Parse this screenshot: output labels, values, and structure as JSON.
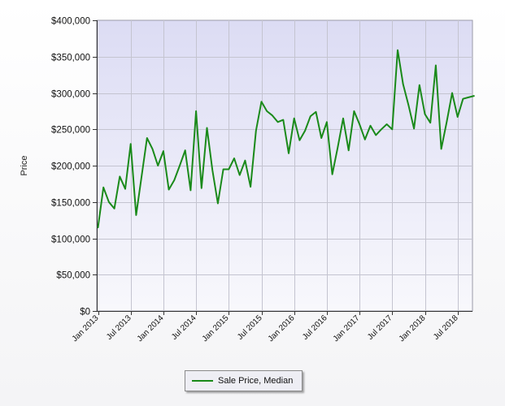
{
  "chart_data": {
    "type": "line",
    "title": "",
    "xlabel": "",
    "ylabel": "Price",
    "ylim": [
      0,
      400000
    ],
    "y_ticks": [
      {
        "value": 0,
        "label": "$0"
      },
      {
        "value": 50000,
        "label": "$50,000"
      },
      {
        "value": 100000,
        "label": "$100,000"
      },
      {
        "value": 150000,
        "label": "$150,000"
      },
      {
        "value": 200000,
        "label": "$200,000"
      },
      {
        "value": 250000,
        "label": "$250,000"
      },
      {
        "value": 300000,
        "label": "$300,000"
      },
      {
        "value": 350000,
        "label": "$350,000"
      },
      {
        "value": 400000,
        "label": "$400,000"
      }
    ],
    "x_ticks": [
      {
        "value": "2013-01",
        "label": "Jan 2013"
      },
      {
        "value": "2013-07",
        "label": "Jul 2013"
      },
      {
        "value": "2014-01",
        "label": "Jan 2014"
      },
      {
        "value": "2014-07",
        "label": "Jul 2014"
      },
      {
        "value": "2015-01",
        "label": "Jan 2015"
      },
      {
        "value": "2015-07",
        "label": "Jul 2015"
      },
      {
        "value": "2016-01",
        "label": "Jan 2016"
      },
      {
        "value": "2016-07",
        "label": "Jul 2016"
      },
      {
        "value": "2017-01",
        "label": "Jan 2017"
      },
      {
        "value": "2017-07",
        "label": "Jul 2017"
      },
      {
        "value": "2018-01",
        "label": "Jan 2018"
      },
      {
        "value": "2018-07",
        "label": "Jul 2018"
      }
    ],
    "x": [
      "2013-01",
      "2013-02",
      "2013-03",
      "2013-04",
      "2013-05",
      "2013-06",
      "2013-07",
      "2013-08",
      "2013-09",
      "2013-10",
      "2013-11",
      "2013-12",
      "2014-01",
      "2014-02",
      "2014-03",
      "2014-04",
      "2014-05",
      "2014-06",
      "2014-07",
      "2014-08",
      "2014-09",
      "2014-10",
      "2014-11",
      "2014-12",
      "2015-01",
      "2015-02",
      "2015-03",
      "2015-04",
      "2015-05",
      "2015-06",
      "2015-07",
      "2015-08",
      "2015-09",
      "2015-10",
      "2015-11",
      "2015-12",
      "2016-01",
      "2016-02",
      "2016-03",
      "2016-04",
      "2016-05",
      "2016-06",
      "2016-07",
      "2016-08",
      "2016-09",
      "2016-10",
      "2016-11",
      "2016-12",
      "2017-01",
      "2017-02",
      "2017-03",
      "2017-04",
      "2017-05",
      "2017-06",
      "2017-07",
      "2017-08",
      "2017-09",
      "2017-10",
      "2017-11",
      "2017-12",
      "2018-01",
      "2018-02",
      "2018-03",
      "2018-04",
      "2018-05",
      "2018-06",
      "2018-07",
      "2018-08",
      "2018-09",
      "2018-10"
    ],
    "series": [
      {
        "name": "Sale Price, Median",
        "color": "#1a8a1a",
        "values": [
          115000,
          170000,
          150000,
          141000,
          185000,
          168000,
          230000,
          132000,
          185000,
          238000,
          223000,
          200000,
          220000,
          167000,
          180000,
          200000,
          221000,
          166000,
          275000,
          169000,
          252000,
          194000,
          148000,
          195000,
          195000,
          210000,
          187000,
          207000,
          171000,
          248000,
          288000,
          275000,
          269000,
          260000,
          263000,
          217000,
          265000,
          235000,
          248000,
          268000,
          274000,
          238000,
          260000,
          188000,
          225000,
          265000,
          221000,
          275000,
          257000,
          236000,
          255000,
          242000,
          250000,
          257000,
          250000,
          359000,
          312000,
          283000,
          251000,
          311000,
          271000,
          259000,
          338000,
          223000,
          260000,
          300000,
          267000,
          292000,
          294000,
          296000
        ]
      }
    ],
    "grid": true,
    "legend_position": "bottom-center",
    "colors": {
      "line": "#1a8a1a",
      "plot_bg_top": "#dcdcf4",
      "plot_bg_bottom": "#f8f8fc",
      "grid": "#c4c4d0"
    }
  }
}
